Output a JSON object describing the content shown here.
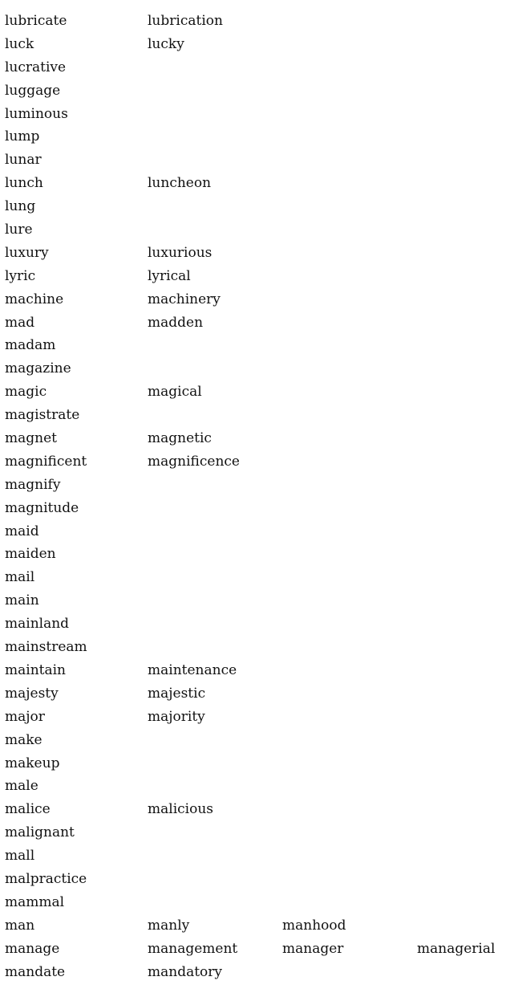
{
  "rows": [
    [
      "lubricate",
      "lubrication"
    ],
    [
      "luck",
      "lucky"
    ],
    [
      "lucrative"
    ],
    [
      "luggage"
    ],
    [
      "luminous"
    ],
    [
      "lump"
    ],
    [
      "lunar"
    ],
    [
      "lunch",
      "luncheon"
    ],
    [
      "lung"
    ],
    [
      "lure"
    ],
    [
      "luxury",
      "luxurious"
    ],
    [
      "lyric",
      "lyrical"
    ],
    [
      "machine",
      "machinery"
    ],
    [
      "mad",
      "madden"
    ],
    [
      "madam"
    ],
    [
      "magazine"
    ],
    [
      "magic",
      "magical"
    ],
    [
      "magistrate"
    ],
    [
      "magnet",
      "magnetic"
    ],
    [
      "magnificent",
      "magnificence"
    ],
    [
      "magnify"
    ],
    [
      "magnitude"
    ],
    [
      "maid"
    ],
    [
      "maiden"
    ],
    [
      "mail"
    ],
    [
      "main"
    ],
    [
      "mainland"
    ],
    [
      "mainstream"
    ],
    [
      "maintain",
      "maintenance"
    ],
    [
      "majesty",
      "majestic"
    ],
    [
      "major",
      "majority"
    ],
    [
      "make"
    ],
    [
      "makeup"
    ],
    [
      "male"
    ],
    [
      "malice",
      "malicious"
    ],
    [
      "malignant"
    ],
    [
      "mall"
    ],
    [
      "malpractice"
    ],
    [
      "mammal"
    ],
    [
      "man",
      "manly",
      "manhood"
    ],
    [
      "manage",
      "management",
      "manager",
      "managerial"
    ],
    [
      "mandate",
      "mandatory"
    ]
  ]
}
